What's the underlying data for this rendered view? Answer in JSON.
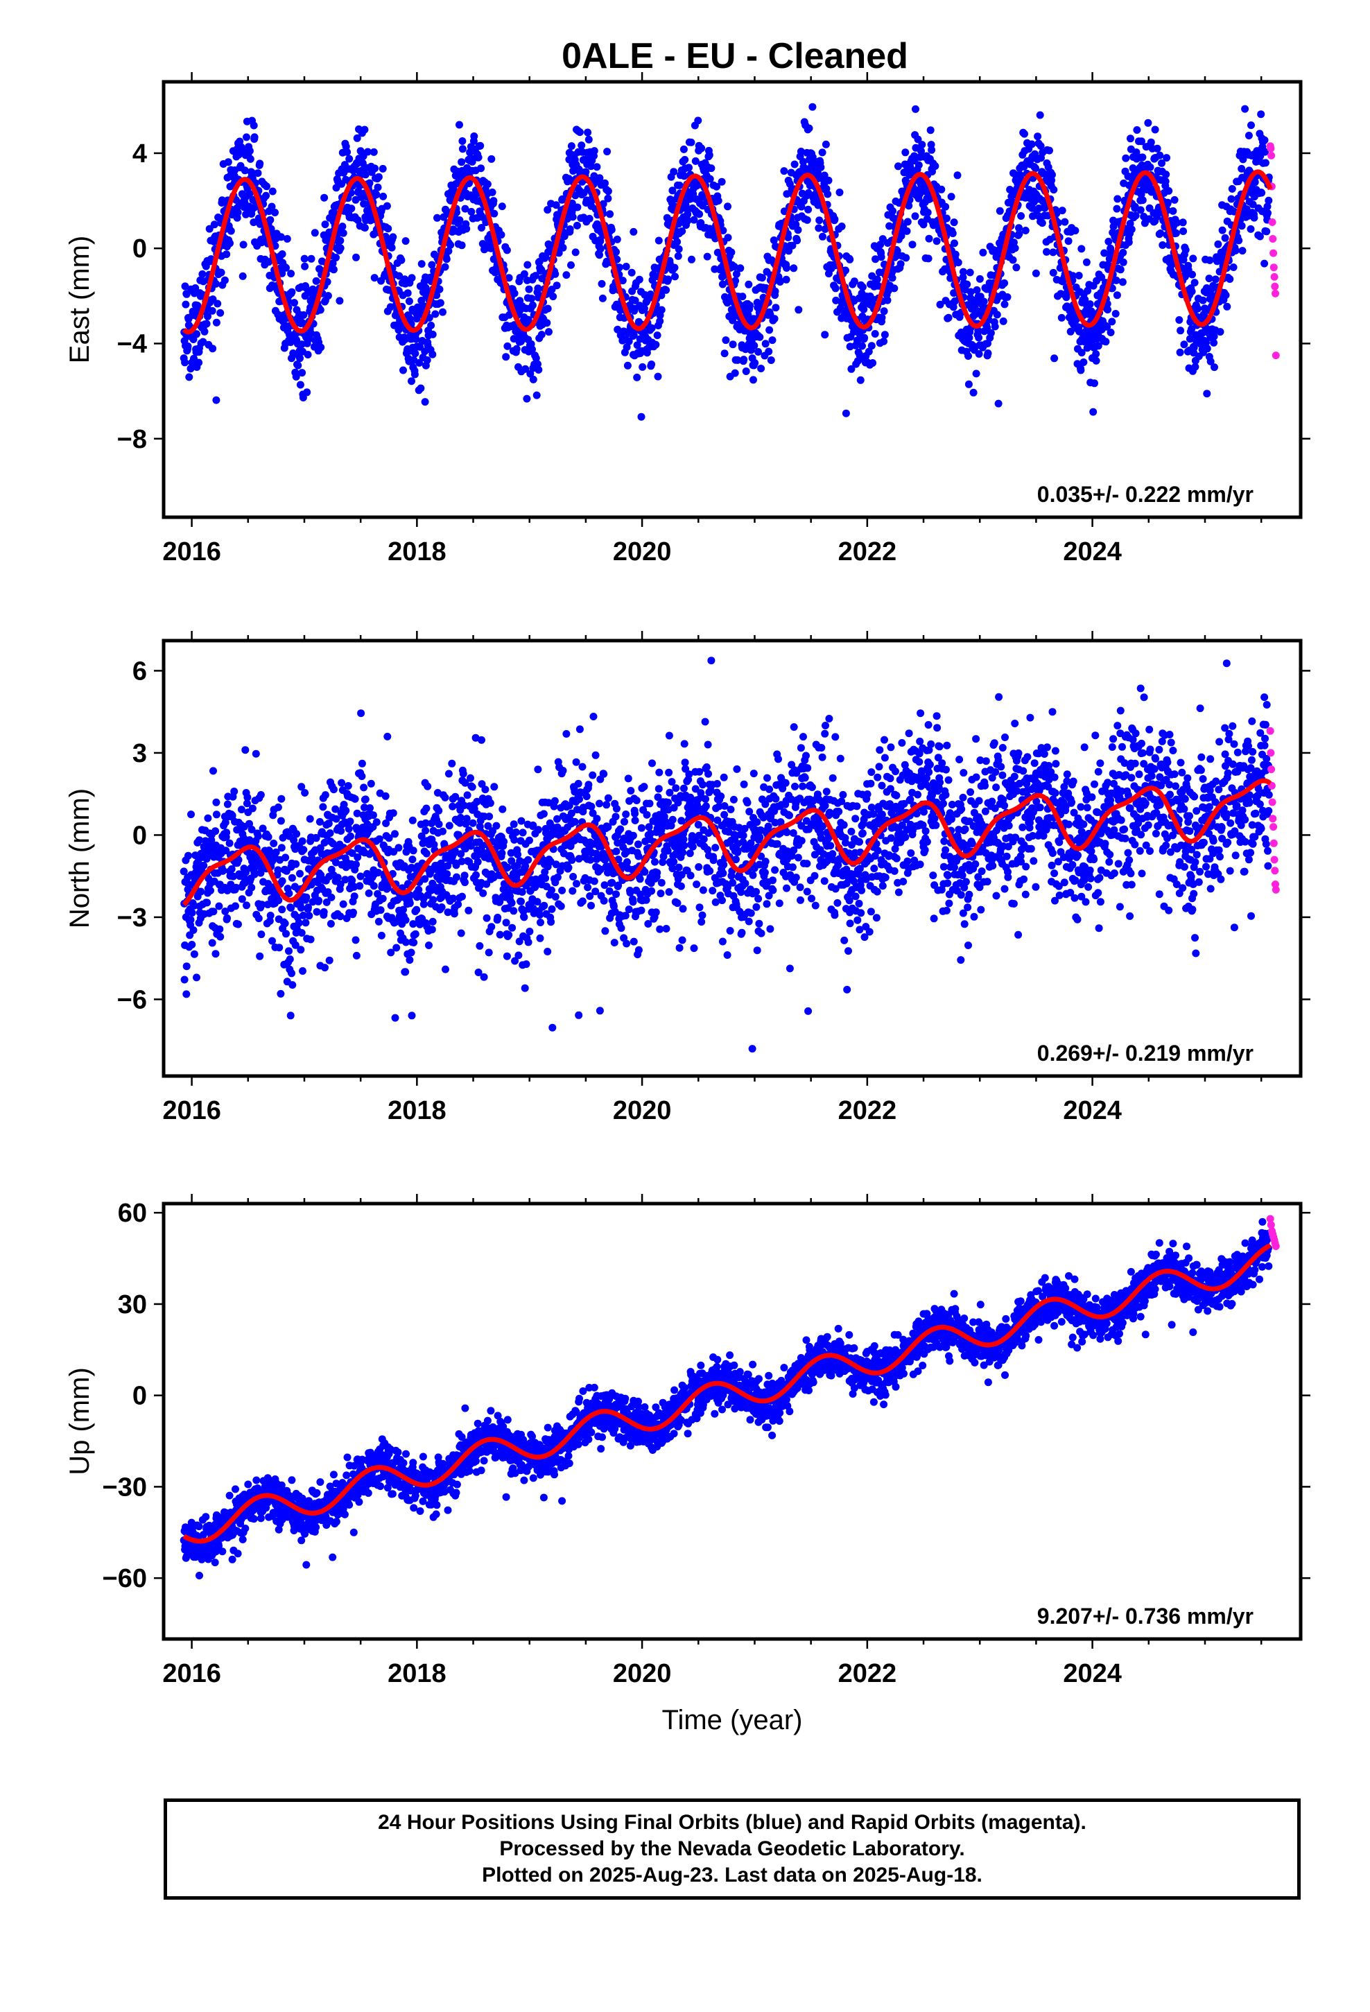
{
  "title": "0ALE  - EU - Cleaned",
  "colors": {
    "final_orbits": "#0000ff",
    "rapid_orbits": "#ff22dd",
    "model": "#ff0000",
    "frame": "#000000"
  },
  "footer": {
    "line1": "24 Hour Positions Using Final Orbits (blue) and Rapid Orbits (magenta).",
    "line2": "Processed by the Nevada Geodetic Laboratory.",
    "line3": "Plotted on 2025-Aug-23. Last data on 2025-Aug-18."
  },
  "chart_data": [
    {
      "type": "scatter",
      "component": "east",
      "ylabel": "East (mm)",
      "xlabel": "",
      "xlim": [
        2015.75,
        2025.85
      ],
      "ylim": [
        -11.3,
        7.0
      ],
      "xticks": [
        2016,
        2018,
        2020,
        2022,
        2024
      ],
      "yticks": [
        -8,
        -4,
        0,
        4
      ],
      "yticklabels": [
        "−8",
        "−4",
        "0",
        "4"
      ],
      "rate_label": "0.035+/- 0.222 mm/yr",
      "final_range": [
        2015.93,
        2025.57
      ],
      "rapid_range": [
        2025.58,
        2025.63
      ],
      "model": {
        "offset": -0.15,
        "rate": 0.035,
        "annual_amplitude": 3.2,
        "annual_peak": 0.47,
        "semiannual_amplitude": 0,
        "semiannual_peak": 0
      },
      "noise_sd": 1.1,
      "rapid_values": [
        4.3,
        4.2,
        3.9,
        2.6,
        1.1,
        0.4,
        -0.2,
        -0.8,
        -1.2,
        -1.6,
        -1.9,
        -4.5
      ]
    },
    {
      "type": "scatter",
      "component": "north",
      "ylabel": "North (mm)",
      "xlabel": "",
      "xlim": [
        2015.75,
        2025.85
      ],
      "ylim": [
        -8.8,
        7.1
      ],
      "xticks": [
        2016,
        2018,
        2020,
        2022,
        2024
      ],
      "yticks": [
        -6,
        -3,
        0,
        3,
        6
      ],
      "yticklabels": [
        "−6",
        "−3",
        "0",
        "3",
        "6"
      ],
      "rate_label": "0.269+/- 0.219 mm/yr",
      "final_range": [
        2015.93,
        2025.57
      ],
      "rapid_range": [
        2025.58,
        2025.63
      ],
      "model": {
        "offset": -0.2,
        "rate": 0.269,
        "annual_amplitude": 0.9,
        "annual_peak": 0.42,
        "semiannual_amplitude": 0.3,
        "semiannual_peak": 0.1
      },
      "noise_sd": 1.4,
      "rapid_values": [
        3.8,
        3.0,
        2.4,
        1.8,
        1.2,
        0.6,
        0.3,
        -0.3,
        -0.9,
        -1.3,
        -1.8,
        -2.0
      ]
    },
    {
      "type": "scatter",
      "component": "up",
      "ylabel": "Up (mm)",
      "xlabel": "Time (year)",
      "xlim": [
        2015.75,
        2025.85
      ],
      "ylim": [
        -80,
        63
      ],
      "xticks": [
        2016,
        2018,
        2020,
        2022,
        2024
      ],
      "yticks": [
        -60,
        -30,
        0,
        30,
        60
      ],
      "yticklabels": [
        "−60",
        "−30",
        "0",
        "30",
        "60"
      ],
      "rate_label": "9.207+/- 0.736 mm/yr",
      "final_range": [
        2015.93,
        2025.57
      ],
      "rapid_range": [
        2025.58,
        2025.63
      ],
      "model": {
        "offset": -0.5,
        "rate": 9.207,
        "annual_amplitude": 5.0,
        "annual_peak": 0.62,
        "semiannual_amplitude": 0,
        "semiannual_peak": 0
      },
      "noise_sd": 3.6,
      "rapid_values": [
        58,
        56,
        54,
        53,
        52,
        51,
        50,
        49
      ]
    }
  ]
}
